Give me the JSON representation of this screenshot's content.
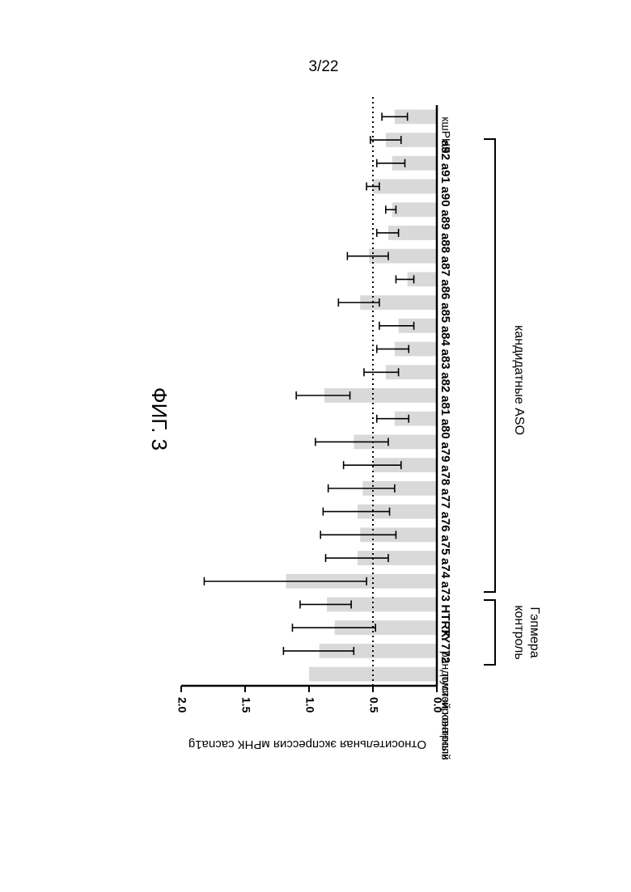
{
  "page": {
    "number": "3/22",
    "figure_label": "ФИГ. 3"
  },
  "chart_data": {
    "type": "bar",
    "ylabel": "Относительная экспрессия мРНК cacna1g",
    "ylim": [
      0,
      2.0
    ],
    "yticks": [
      "0.0",
      "0.5",
      "1.0",
      "1.5",
      "2.0"
    ],
    "reference_line": 0.5,
    "categories": [
      "пустой контроль",
      "рандомизированный",
      "TY772",
      "HTRX",
      "a73",
      "a74",
      "a75",
      "a76",
      "a77",
      "a78",
      "a79",
      "a80",
      "a81",
      "a82",
      "a83",
      "a84",
      "a85",
      "a86",
      "a87",
      "a88",
      "a89",
      "a90",
      "a91",
      "a92",
      "кшРНК"
    ],
    "values": [
      1.0,
      0.92,
      0.8,
      0.86,
      1.18,
      0.62,
      0.6,
      0.62,
      0.58,
      0.5,
      0.65,
      0.33,
      0.88,
      0.4,
      0.33,
      0.3,
      0.6,
      0.23,
      0.53,
      0.38,
      0.35,
      0.5,
      0.35,
      0.4,
      0.33
    ],
    "error_low": [
      null,
      0.65,
      0.48,
      0.67,
      0.55,
      0.38,
      0.32,
      0.37,
      0.33,
      0.28,
      0.38,
      0.22,
      0.68,
      0.3,
      0.22,
      0.18,
      0.45,
      0.18,
      0.38,
      0.3,
      0.32,
      0.45,
      0.25,
      0.28,
      0.23
    ],
    "error_high": [
      null,
      1.2,
      1.13,
      1.07,
      1.82,
      0.87,
      0.91,
      0.89,
      0.85,
      0.73,
      0.95,
      0.47,
      1.1,
      0.57,
      0.47,
      0.45,
      0.77,
      0.32,
      0.7,
      0.47,
      0.4,
      0.55,
      0.47,
      0.52,
      0.43
    ],
    "groups": [
      {
        "label": "контроль Гэпмера",
        "lines": [
          "контроль",
          "Гэпмера"
        ]
      },
      {
        "label": "кандидатные ASO"
      }
    ],
    "colors": {
      "bar": "#d9d9d9",
      "axis": "#000000"
    }
  }
}
